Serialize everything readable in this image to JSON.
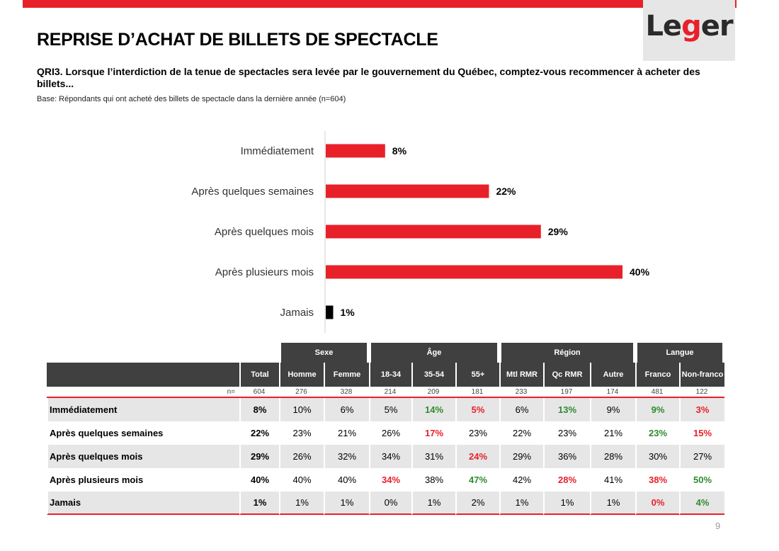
{
  "header": {
    "title": "REPRISE D’ACHAT DE BILLETS DE SPECTACLE",
    "question": "QRI3. Lorsque l’interdiction de la tenue de spectacles sera levée par le gouvernement du Québec, comptez-vous recommencer à acheter des billets...",
    "base": "Base: Répondants qui ont acheté des billets de spectacle dans la dernière année (n=604)",
    "logo": {
      "pre": "Le",
      "mid": "g",
      "post": "er"
    }
  },
  "colors": {
    "accent": "#e8202a",
    "dark": "#404040",
    "shade": "#e6e6e6",
    "positive": "#2e8b2e",
    "black": "#000000"
  },
  "chart_data": {
    "type": "bar",
    "orientation": "horizontal",
    "categories": [
      "Immédiatement",
      "Après quelques semaines",
      "Après quelques mois",
      "Après plusieurs mois",
      "Jamais"
    ],
    "values": [
      8,
      22,
      29,
      40,
      1
    ],
    "data_labels": [
      "8%",
      "22%",
      "29%",
      "40%",
      "1%"
    ],
    "bar_colors": [
      "#e8202a",
      "#e8202a",
      "#e8202a",
      "#e8202a",
      "#000000"
    ],
    "title": "",
    "xlabel": "",
    "ylabel": "",
    "xlim": [
      0,
      40
    ]
  },
  "table": {
    "groups": [
      "Sexe",
      "Âge",
      "Région",
      "Langue"
    ],
    "columns": [
      "Total",
      "Homme",
      "Femme",
      "18-34",
      "35-54",
      "55+",
      "Mtl RMR",
      "Qc RMR",
      "Autre",
      "Franco",
      "Non-franco"
    ],
    "n_label": "n=",
    "n_values": [
      "604",
      "276",
      "328",
      "214",
      "209",
      "181",
      "233",
      "197",
      "174",
      "481",
      "122"
    ],
    "rows": [
      {
        "label": "Immédiatement",
        "values": [
          "8%",
          "10%",
          "6%",
          "5%",
          "14%",
          "5%",
          "6%",
          "13%",
          "9%",
          "9%",
          "3%"
        ],
        "sig": [
          "",
          "",
          "",
          "",
          "pos",
          "neg",
          "",
          "pos",
          "",
          "pos",
          "neg"
        ]
      },
      {
        "label": "Après quelques semaines",
        "values": [
          "22%",
          "23%",
          "21%",
          "26%",
          "17%",
          "23%",
          "22%",
          "23%",
          "21%",
          "23%",
          "15%"
        ],
        "sig": [
          "",
          "",
          "",
          "",
          "neg",
          "",
          "",
          "",
          "",
          "pos",
          "neg"
        ]
      },
      {
        "label": "Après quelques mois",
        "values": [
          "29%",
          "26%",
          "32%",
          "34%",
          "31%",
          "24%",
          "29%",
          "36%",
          "28%",
          "30%",
          "27%"
        ],
        "sig": [
          "",
          "",
          "",
          "",
          "",
          "neg",
          "",
          "",
          "",
          "",
          ""
        ]
      },
      {
        "label": "Après plusieurs mois",
        "values": [
          "40%",
          "40%",
          "40%",
          "34%",
          "38%",
          "47%",
          "42%",
          "28%",
          "41%",
          "38%",
          "50%"
        ],
        "sig": [
          "",
          "",
          "",
          "neg",
          "",
          "pos",
          "",
          "neg",
          "",
          "neg",
          "pos"
        ]
      },
      {
        "label": "Jamais",
        "values": [
          "1%",
          "1%",
          "1%",
          "0%",
          "1%",
          "2%",
          "1%",
          "1%",
          "1%",
          "0%",
          "4%"
        ],
        "sig": [
          "",
          "",
          "",
          "",
          "",
          "",
          "",
          "",
          "",
          "neg",
          "pos"
        ]
      }
    ]
  },
  "page_number": "9"
}
